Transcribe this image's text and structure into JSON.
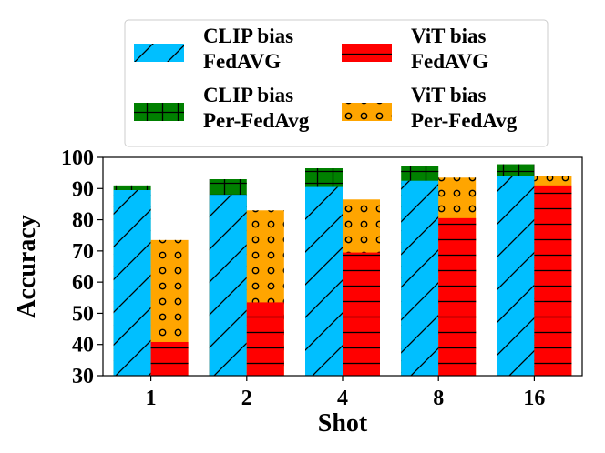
{
  "chart_data": {
    "type": "bar",
    "xlabel": "Shot",
    "ylabel": "Accuracy",
    "ylim": [
      30,
      100
    ],
    "yticks": [
      30,
      40,
      50,
      60,
      70,
      80,
      90,
      100
    ],
    "categories": [
      "1",
      "2",
      "4",
      "8",
      "16"
    ],
    "series": [
      {
        "name": "CLIP bias FedAVG",
        "group": "CLIP",
        "layer": "base",
        "values": [
          89.5,
          88.0,
          90.5,
          92.5,
          94.0
        ]
      },
      {
        "name": "CLIP bias Per-FedAvg",
        "group": "CLIP",
        "layer": "top",
        "values": [
          91.0,
          93.0,
          96.5,
          97.3,
          97.8
        ]
      },
      {
        "name": "ViT bias FedAVG",
        "group": "ViT",
        "layer": "base",
        "values": [
          40.8,
          53.5,
          69.5,
          80.5,
          91.0
        ]
      },
      {
        "name": "ViT bias Per-FedAvg",
        "group": "ViT",
        "layer": "top",
        "values": [
          73.5,
          83.0,
          86.5,
          93.5,
          94.0
        ]
      }
    ],
    "legend": {
      "position": "top",
      "entries": [
        {
          "line1": "CLIP bias",
          "line2": "FedAVG",
          "color": "#00BFFF",
          "hatch": "diagonal"
        },
        {
          "line1": "ViT bias",
          "line2": "FedAVG",
          "color": "#FF0000",
          "hatch": "horizontal"
        },
        {
          "line1": "CLIP bias",
          "line2": "Per-FedAvg",
          "color": "#008000",
          "hatch": "grid"
        },
        {
          "line1": "ViT bias",
          "line2": "Per-FedAvg",
          "color": "#FFA500",
          "hatch": "circles"
        }
      ]
    }
  }
}
